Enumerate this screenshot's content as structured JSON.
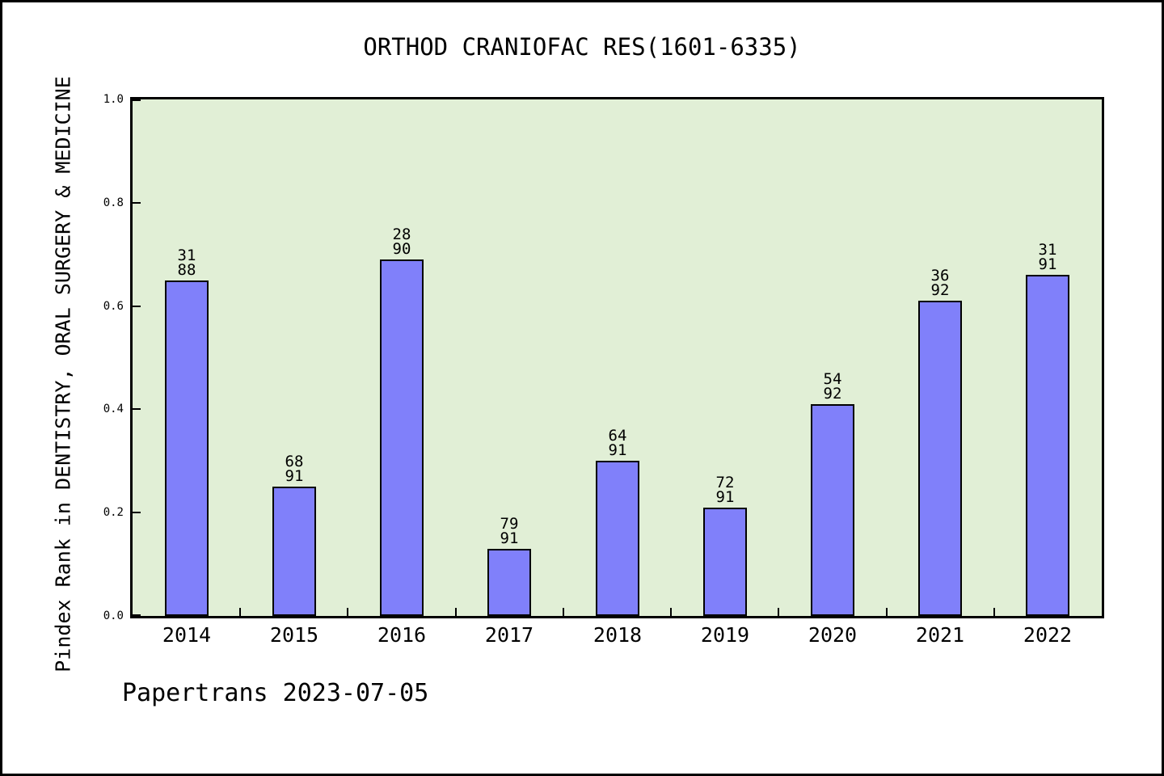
{
  "footer": "Papertrans 2023-07-05",
  "chart_data": {
    "type": "bar",
    "title": "ORTHOD CRANIOFAC RES(1601-6335)",
    "xlabel": "",
    "ylabel": "Pindex Rank in DENTISTRY, ORAL SURGERY & MEDICINE",
    "categories": [
      "2014",
      "2015",
      "2016",
      "2017",
      "2018",
      "2019",
      "2020",
      "2021",
      "2022"
    ],
    "values": [
      0.65,
      0.25,
      0.69,
      0.13,
      0.3,
      0.21,
      0.41,
      0.61,
      0.66
    ],
    "bar_labels": [
      {
        "top": "31",
        "bottom": "88"
      },
      {
        "top": "68",
        "bottom": "91"
      },
      {
        "top": "28",
        "bottom": "90"
      },
      {
        "top": "79",
        "bottom": "91"
      },
      {
        "top": "64",
        "bottom": "91"
      },
      {
        "top": "72",
        "bottom": "91"
      },
      {
        "top": "54",
        "bottom": "92"
      },
      {
        "top": "36",
        "bottom": "92"
      },
      {
        "top": "31",
        "bottom": "91"
      }
    ],
    "ylim": [
      0.0,
      1.0
    ],
    "ytick_labels": [
      "0.0",
      "0.2",
      "0.4",
      "0.6",
      "0.8",
      "1.0"
    ],
    "grid": false,
    "legend_position": "none",
    "colors": {
      "bar_fill": "#8080fa",
      "bar_edge": "#000000",
      "plot_bg": "#e1efd6",
      "figure_bg": "#ffffff",
      "frame": "#000000"
    }
  }
}
